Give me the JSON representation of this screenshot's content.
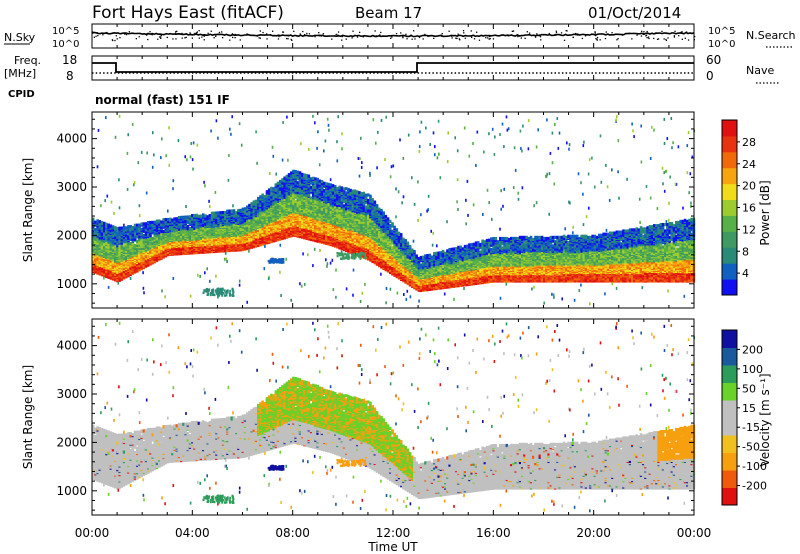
{
  "header": {
    "station": "Fort Hays East (fitACF)",
    "beam": "Beam 17",
    "date": "01/Oct/2014"
  },
  "status_panels": {
    "nsky_label": "N.Sky",
    "nsearch_label": "N.Search",
    "nsky_ticks": [
      "10^5",
      "10^0"
    ],
    "nsearch_ticks": [
      "10^5",
      "10^0"
    ],
    "freq_label": "Freq.",
    "freq_unit": "[MHz]",
    "freq_ticks": [
      "18",
      "8"
    ],
    "nave_label": "Nave",
    "nave_ticks": [
      "60",
      "0"
    ],
    "cpid_label": "CPID",
    "cpid_text": "normal (fast) 151 IF"
  },
  "colors": {
    "power": [
      "#1010f0",
      "#1060c0",
      "#2a8a78",
      "#3f9a62",
      "#58b048",
      "#9ccc30",
      "#f0dc18",
      "#f6a410",
      "#f06a0c",
      "#e83210",
      "#e01010"
    ],
    "velocity": [
      "#e01010",
      "#f05a0c",
      "#f6a010",
      "#f0c020",
      "#c0c0c0",
      "#c0c0c0",
      "#6ad02a",
      "#2c9c5a",
      "#1a5a9c",
      "#1010a0"
    ]
  },
  "chart_data": [
    {
      "type": "heatmap",
      "name": "power",
      "ylabel": "Slant Range [km]",
      "yticks": [
        1000,
        2000,
        3000,
        4000
      ],
      "ylim": [
        500,
        4550
      ],
      "xlim": [
        "00:00",
        "24:00"
      ],
      "colorbar": {
        "label": "Power [dB]",
        "ticks": [
          "4",
          "8",
          "12",
          "16",
          "20",
          "24",
          "28"
        ],
        "range": [
          2,
          32
        ]
      },
      "echo_summary": [
        {
          "time": "00:00",
          "lower_edge_km": 1350,
          "upper_edge_km": 2300
        },
        {
          "time": "01:00",
          "lower_edge_km": 1150,
          "upper_edge_km": 2100
        },
        {
          "time": "03:00",
          "lower_edge_km": 1700,
          "upper_edge_km": 2300
        },
        {
          "time": "06:00",
          "lower_edge_km": 1800,
          "upper_edge_km": 2500
        },
        {
          "time": "08:00",
          "lower_edge_km": 2100,
          "upper_edge_km": 3300
        },
        {
          "time": "09:30",
          "lower_edge_km": 1900,
          "upper_edge_km": 3000
        },
        {
          "time": "11:00",
          "lower_edge_km": 1600,
          "upper_edge_km": 2800
        },
        {
          "time": "13:00",
          "lower_edge_km": 950,
          "upper_edge_km": 1500
        },
        {
          "time": "16:00",
          "lower_edge_km": 1150,
          "upper_edge_km": 1900
        },
        {
          "time": "20:00",
          "lower_edge_km": 1150,
          "upper_edge_km": 1950
        },
        {
          "time": "24:00",
          "lower_edge_km": 1150,
          "upper_edge_km": 2300
        }
      ]
    },
    {
      "type": "heatmap",
      "name": "velocity",
      "ylabel": "Slant Range [km]",
      "yticks": [
        1000,
        2000,
        3000,
        4000
      ],
      "ylim": [
        500,
        4550
      ],
      "xlim": [
        "00:00",
        "24:00"
      ],
      "xlabel": "Time UT",
      "xticks": [
        "00:00",
        "04:00",
        "08:00",
        "12:00",
        "16:00",
        "20:00",
        "00:00"
      ],
      "colorbar": {
        "label": "Velocity [m s⁻¹]",
        "ticks": [
          "-200",
          "-100",
          "-50",
          "-15",
          "15",
          "50",
          "100",
          "200"
        ]
      }
    }
  ]
}
